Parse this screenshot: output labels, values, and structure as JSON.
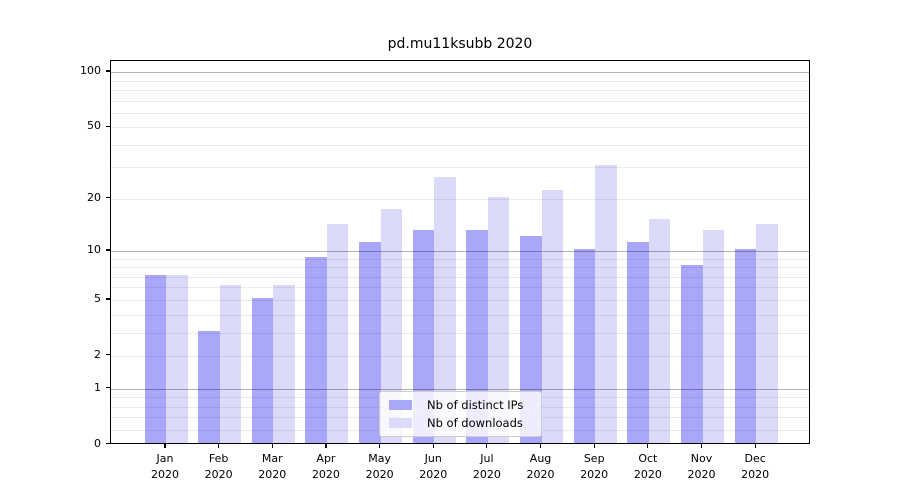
{
  "title": "pd.mu11ksubb 2020",
  "chart_data": {
    "type": "bar",
    "title": "pd.mu11ksubb 2020",
    "months": [
      "Jan",
      "Feb",
      "Mar",
      "Apr",
      "May",
      "Jun",
      "Jul",
      "Aug",
      "Sep",
      "Oct",
      "Nov",
      "Dec"
    ],
    "year": "2020",
    "categories": [
      "Jan 2020",
      "Feb 2020",
      "Mar 2020",
      "Apr 2020",
      "May 2020",
      "Jun 2020",
      "Jul 2020",
      "Aug 2020",
      "Sep 2020",
      "Oct 2020",
      "Nov 2020",
      "Dec 2020"
    ],
    "series": [
      {
        "name": "Nb of distinct IPs",
        "color": "#a9a7fa",
        "values": [
          7,
          3,
          5,
          9,
          11,
          13,
          13,
          12,
          10,
          11,
          8,
          10
        ]
      },
      {
        "name": "Nb of downloads",
        "color": "#dcdaf9",
        "values": [
          7,
          6,
          6,
          14,
          17,
          26,
          20,
          22,
          30,
          15,
          13,
          14
        ]
      }
    ],
    "xlabel": "",
    "ylabel": "",
    "yscale": "log1p",
    "ylim": [
      0,
      115
    ],
    "y_tick_labels": [
      "100",
      "50",
      "20",
      "10",
      "5",
      "2",
      "1",
      "0"
    ],
    "y_tick_values": [
      100,
      50,
      20,
      10,
      5,
      2,
      1,
      0
    ],
    "major_grid_values": [
      1,
      10,
      100
    ],
    "minor_grid_values": [
      0.2,
      0.4,
      0.6,
      0.8,
      2,
      3,
      4,
      5,
      6,
      7,
      8,
      9,
      20,
      30,
      40,
      50,
      60,
      70,
      80,
      90
    ],
    "grid": true,
    "legend_position": "lower center"
  }
}
